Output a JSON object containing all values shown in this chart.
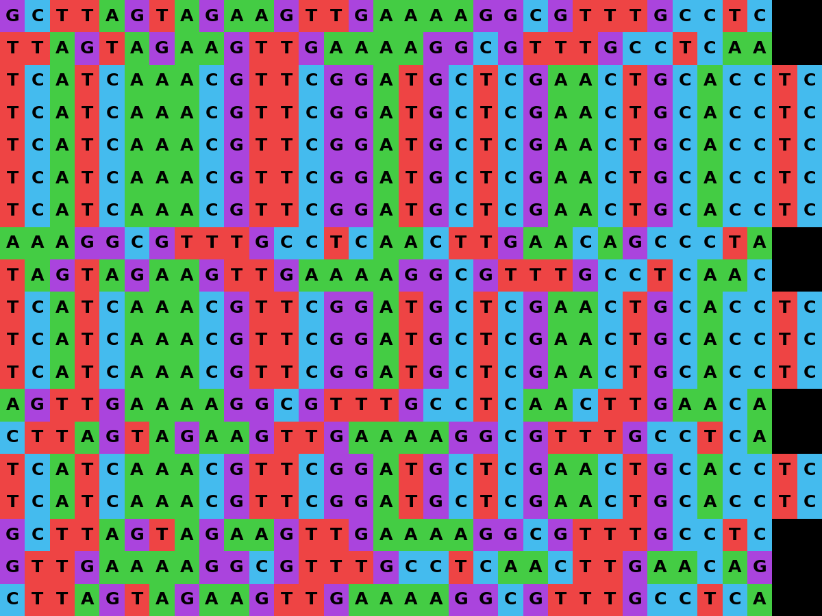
{
  "rows": [
    "GCTTAGTAGAAGTTGAAAAGGCGTTTGCCTC",
    "TTAGTAGAAGTTGAAAAGGCGTTTGCCTCAA",
    "TCATCAAACGTTCGGATGCTCGAACTGCACCTC",
    "TCATCAAACGTTCGGATGCTCGAACTGCACCTC",
    "TCATCAAACGTTCGGATGCTCGAACTGCACCTC",
    "TCATCAAACGTTCGGATGCTCGAACTGCACCTC",
    "TCATCAAACGTTCGGATGCTCGAACTGCACCTC",
    "AAAGGCGTTTGCCTCAACTTGAACAGCCCTA",
    "TAGTAGAAGTTGAAAAGGCGTTTGCCTCAAC",
    "TCATCAAACGTTCGGATGCTCGAACTGCACCTC",
    "TCATCAAACGTTCGGATGCTCGAACTGCACCTC",
    "TCATCAAACGTTCGGATGCTCGAACTGCACCTC",
    "AGTTGAAAAGGCGTTTGCCTCAACTTGAACA",
    "CTTAGTAGAAGTTGAAAAGGCGTTTGCCTCA",
    "TCATCAAACGTTCGGATGCTCGAACTGCACCTC",
    "TCATCAAACGTTCGGATGCTCGAACTGCACCTC",
    "GCTTAGTAGAAGTTGAAAAGGCGTTTGCCTC",
    "GTTGAAAAGGCGTTTGCCTCAACTTGAACAG",
    "CTTAGTAGAAGTTGAAAAGGCGTTTGCCTCA"
  ],
  "display_cols": 33,
  "color_A": "#44cc44",
  "color_T": "#ee4444",
  "color_G": "#aa44dd",
  "color_C": "#44bbee",
  "text_color": "#000000",
  "bg_color": "#000000",
  "font_size_factor": 0.5,
  "fig_width": 12.0,
  "fig_height": 9.0,
  "dpi": 100
}
